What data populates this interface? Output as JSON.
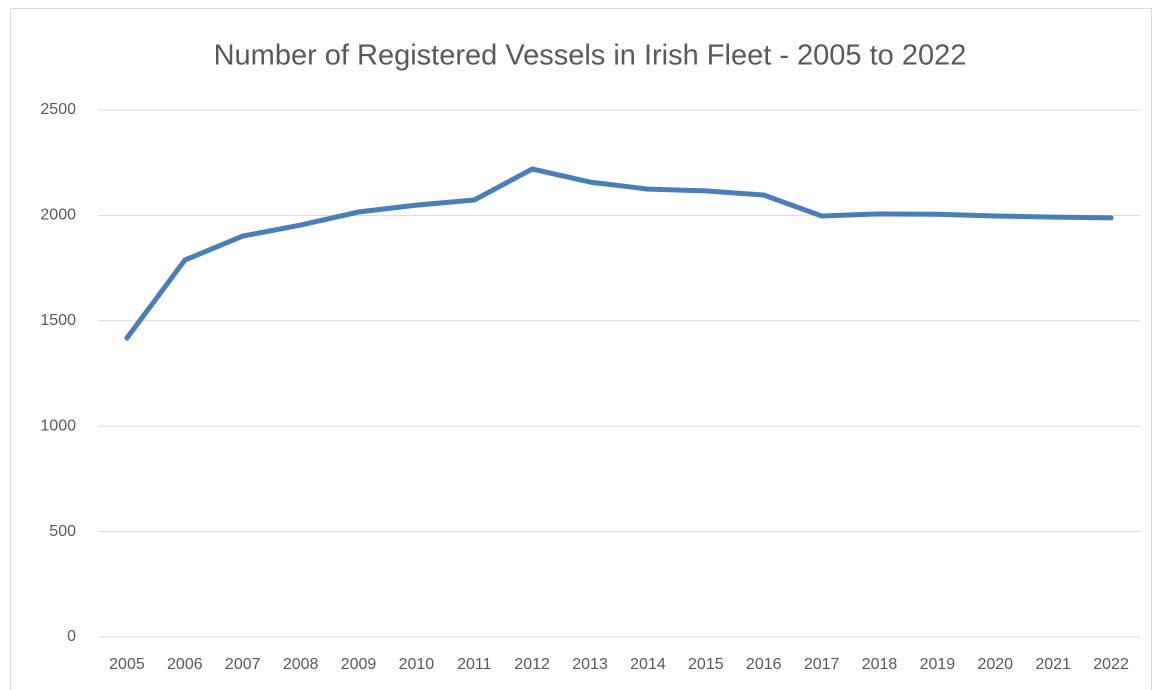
{
  "chart_data": {
    "type": "line",
    "title": "Number of Registered Vessels in Irish Fleet - 2005 to 2022",
    "categories": [
      "2005",
      "2006",
      "2007",
      "2008",
      "2009",
      "2010",
      "2011",
      "2012",
      "2013",
      "2014",
      "2015",
      "2016",
      "2017",
      "2018",
      "2019",
      "2020",
      "2021",
      "2022"
    ],
    "values": [
      1418,
      1788,
      1902,
      1954,
      2016,
      2049,
      2073,
      2220,
      2158,
      2125,
      2116,
      2097,
      1997,
      2007,
      2005,
      1997,
      1992,
      1988
    ],
    "color": "#4a7ebb",
    "ylim": [
      0,
      2500
    ],
    "yticks": [
      0,
      500,
      1000,
      1500,
      2000,
      2500
    ],
    "grid": true
  }
}
